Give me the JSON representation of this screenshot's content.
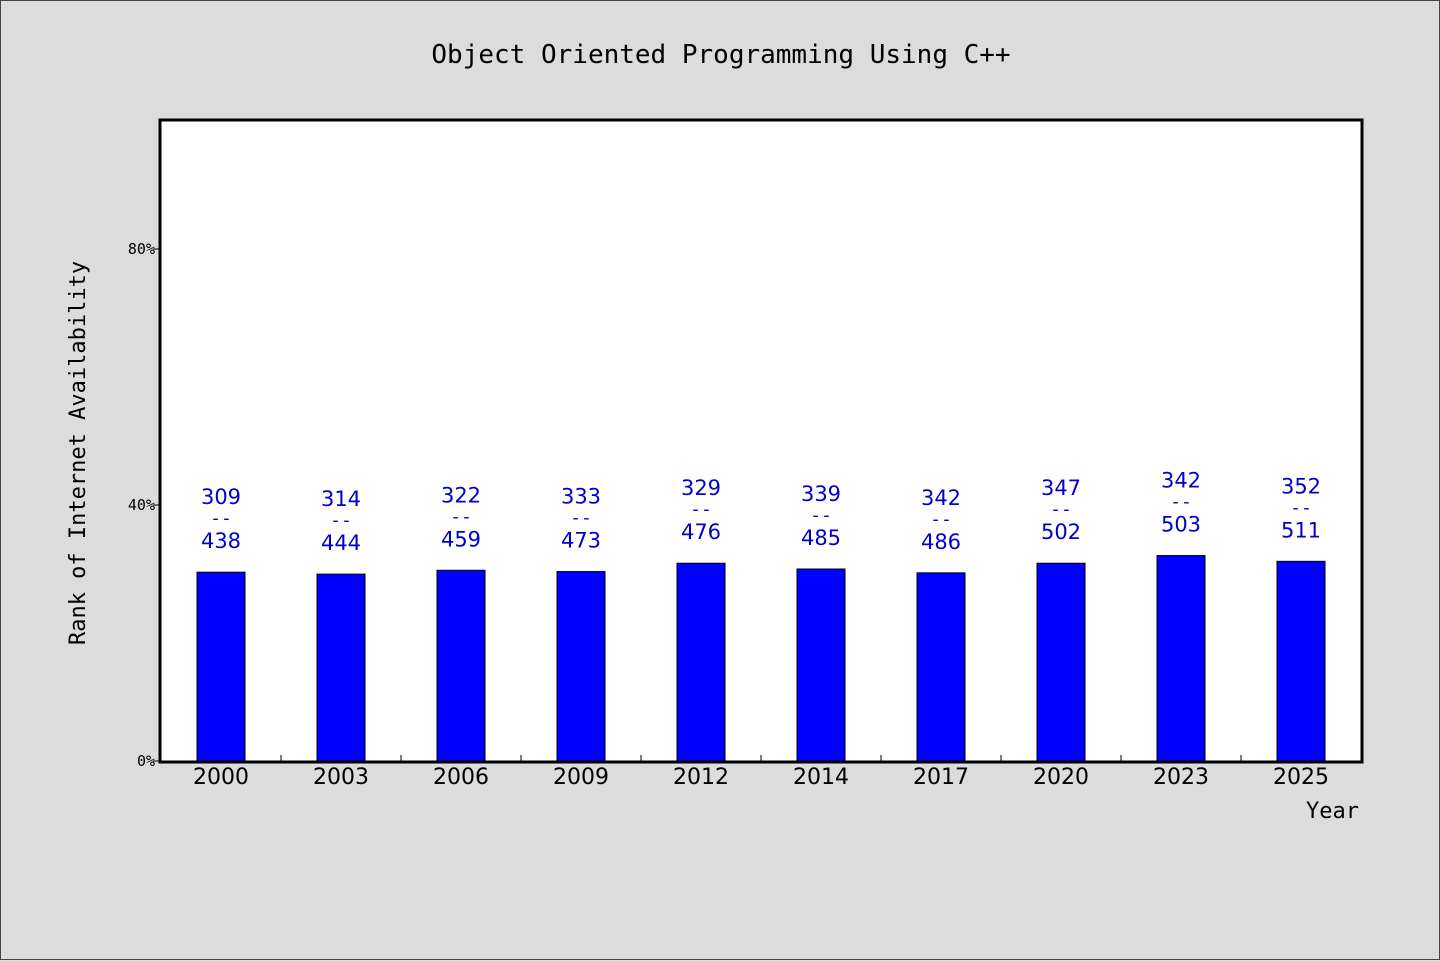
{
  "chart_data": {
    "type": "bar",
    "title": "Object Oriented Programming Using C++",
    "xlabel": "Year",
    "ylabel": "Rank of Internet Availability",
    "ylim": [
      0,
      1
    ],
    "yticks": [
      {
        "value": 0,
        "label": "0%"
      },
      {
        "value": 0.4,
        "label": "40%"
      },
      {
        "value": 0.8,
        "label": "80%"
      }
    ],
    "categories": [
      "2000",
      "2003",
      "2006",
      "2009",
      "2012",
      "2014",
      "2017",
      "2020",
      "2023",
      "2025"
    ],
    "values": [
      0.295,
      0.292,
      0.298,
      0.296,
      0.309,
      0.3,
      0.294,
      0.309,
      0.321,
      0.312
    ],
    "labels": [
      {
        "top": "309",
        "mid": "--",
        "bottom": "438"
      },
      {
        "top": "314",
        "mid": "--",
        "bottom": "444"
      },
      {
        "top": "322",
        "mid": "--",
        "bottom": "459"
      },
      {
        "top": "333",
        "mid": "--",
        "bottom": "473"
      },
      {
        "top": "329",
        "mid": "--",
        "bottom": "476"
      },
      {
        "top": "339",
        "mid": "--",
        "bottom": "485"
      },
      {
        "top": "342",
        "mid": "--",
        "bottom": "486"
      },
      {
        "top": "347",
        "mid": "--",
        "bottom": "502"
      },
      {
        "top": "342",
        "mid": "--",
        "bottom": "503"
      },
      {
        "top": "352",
        "mid": "--",
        "bottom": "511"
      }
    ],
    "bar_color": "#0000ff",
    "label_color": "#0000cc",
    "grid": false,
    "legend": "none"
  }
}
